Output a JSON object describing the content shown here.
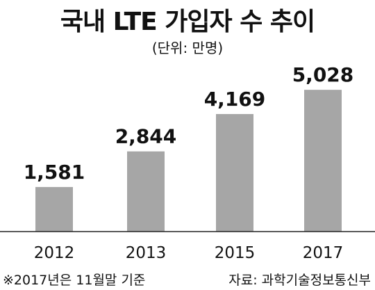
{
  "chart_data": {
    "type": "bar",
    "title": "국내 LTE 가입자 수 추이",
    "subtitle": "(단위: 만명)",
    "categories": [
      "2012",
      "2013",
      "2015",
      "2017"
    ],
    "values": [
      1581,
      2844,
      4169,
      5028
    ],
    "value_labels": [
      "1,581",
      "2,844",
      "4,169",
      "5,028"
    ],
    "xlabel": "",
    "ylabel": "",
    "ylim": [
      0,
      5500
    ],
    "grid": false,
    "legend": "none",
    "bar_color": "#a6a6a6",
    "axis_color": "#222222"
  },
  "footnote": "※2017년은 11월말 기준",
  "source": "자료: 과학기술정보통신부"
}
